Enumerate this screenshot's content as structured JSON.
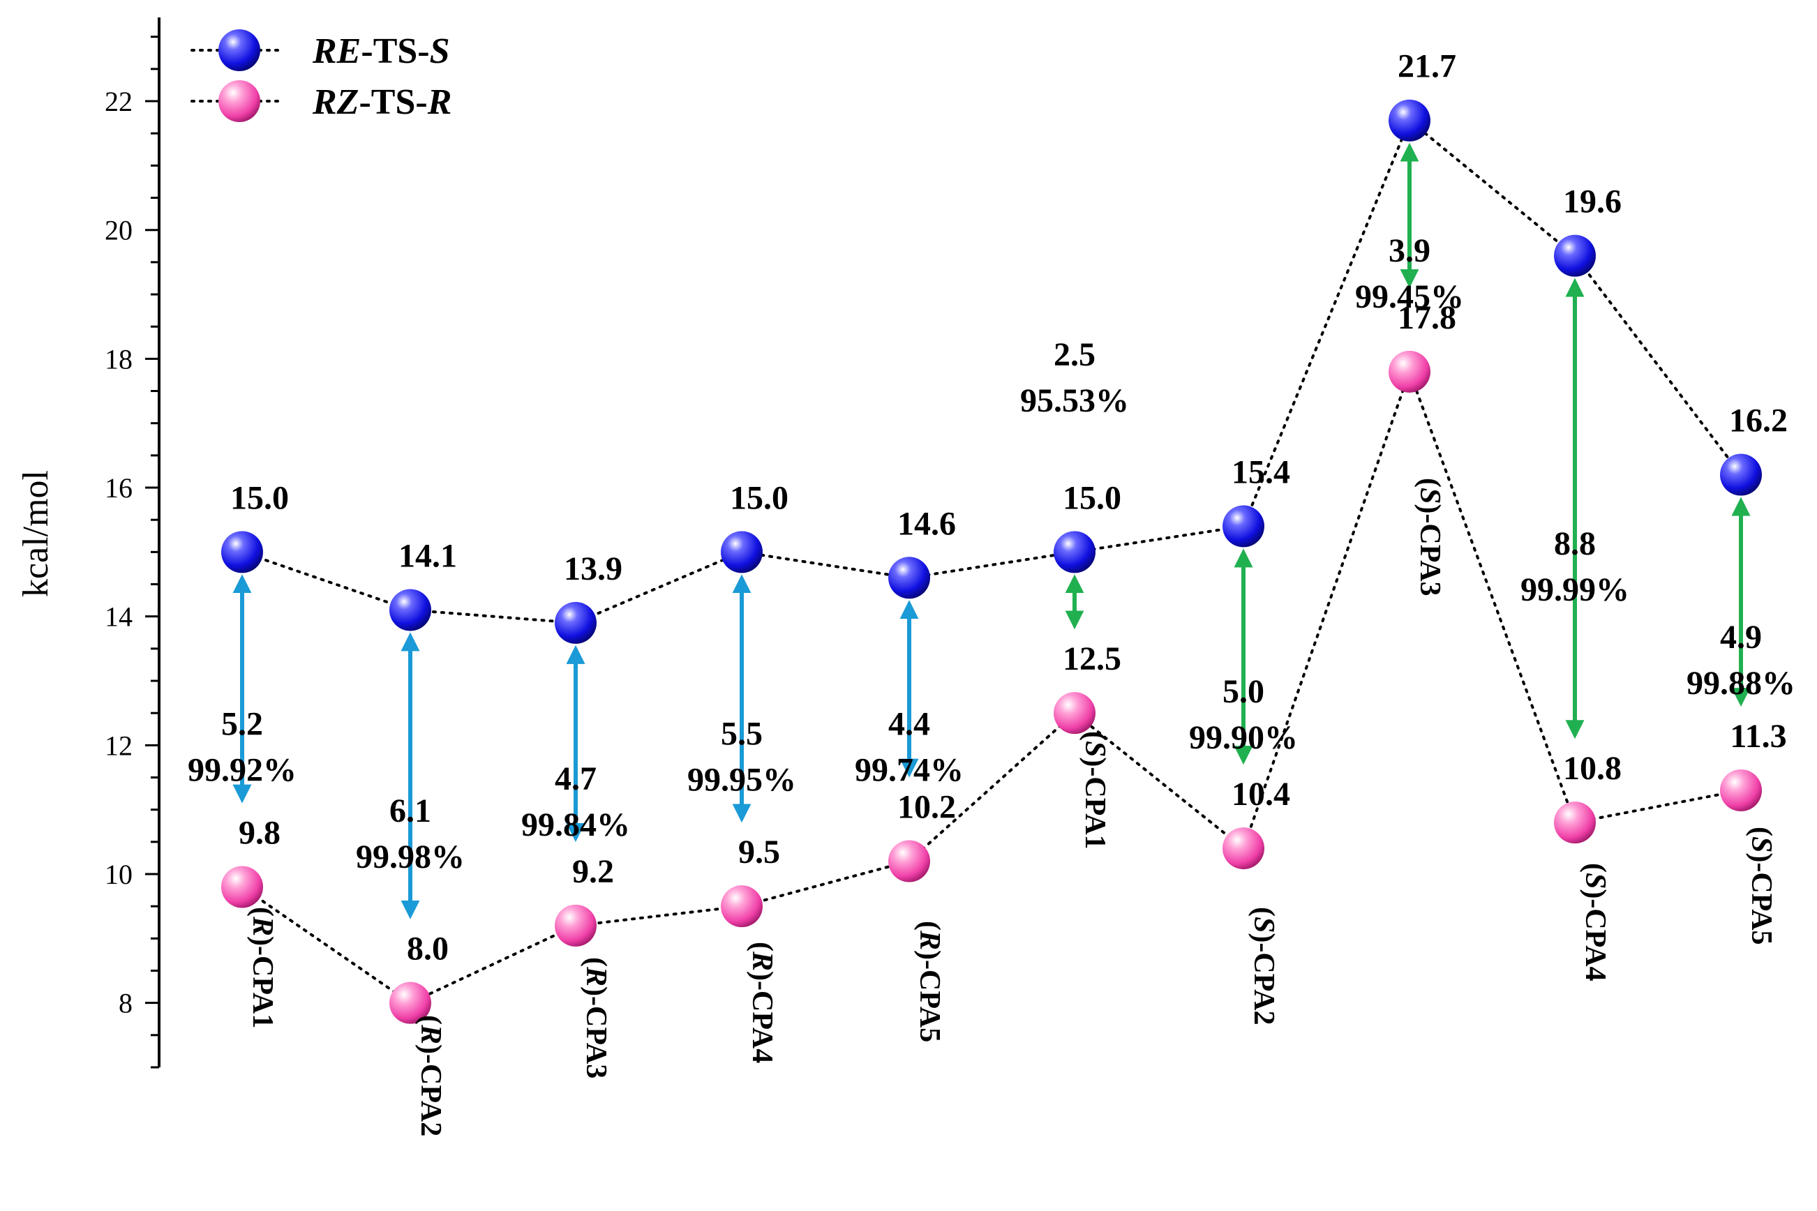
{
  "chart_data": {
    "type": "scatter",
    "ylabel": "kcal/mol",
    "ylim": [
      7.0,
      23.3
    ],
    "yticks": [
      8,
      10,
      12,
      14,
      16,
      18,
      20,
      22
    ],
    "categories": [
      "(R)-CPA1",
      "(R)-CPA2",
      "(R)-CPA3",
      "(R)-CPA4",
      "(R)-CPA5",
      "(S)-CPA1",
      "(S)-CPA2",
      "(S)-CPA3",
      "(S)-CPA4",
      "(S)-CPA5"
    ],
    "series": [
      {
        "name": "RE-TS-S",
        "name_parts": [
          {
            "text": "RE",
            "italic": true
          },
          {
            "text": "-TS-",
            "italic": false
          },
          {
            "text": "S",
            "italic": true
          }
        ],
        "color": "#1010e0",
        "values": [
          15.0,
          14.1,
          13.9,
          15.0,
          14.6,
          15.0,
          15.4,
          21.7,
          19.6,
          16.2
        ],
        "labels": [
          "15.0",
          "14.1",
          "13.9",
          "15.0",
          "14.6",
          "15.0",
          "15.4",
          "21.7",
          "19.6",
          "16.2"
        ]
      },
      {
        "name": "RZ-TS-R",
        "name_parts": [
          {
            "text": "RZ",
            "italic": true
          },
          {
            "text": "-TS-",
            "italic": false
          },
          {
            "text": "R",
            "italic": true
          }
        ],
        "color": "#f040a8",
        "values": [
          9.8,
          8.0,
          9.2,
          9.5,
          10.2,
          12.5,
          10.4,
          17.8,
          10.8,
          11.3
        ],
        "labels": [
          "9.8",
          "8.0",
          "9.2",
          "9.5",
          "10.2",
          "12.5",
          "10.4",
          "17.8",
          "10.8",
          "11.3"
        ]
      }
    ],
    "annotations": [
      {
        "delta": "5.2",
        "percent": "99.92%",
        "arrow_color": "#1a9ad6"
      },
      {
        "delta": "6.1",
        "percent": "99.98%",
        "arrow_color": "#1a9ad6"
      },
      {
        "delta": "4.7",
        "percent": "99.84%",
        "arrow_color": "#1a9ad6"
      },
      {
        "delta": "5.5",
        "percent": "99.95%",
        "arrow_color": "#1a9ad6"
      },
      {
        "delta": "4.4",
        "percent": "99.74%",
        "arrow_color": "#1a9ad6"
      },
      {
        "delta": "2.5",
        "percent": "95.53%",
        "arrow_color": "#20b050"
      },
      {
        "delta": "5.0",
        "percent": "99.90%",
        "arrow_color": "#20b050"
      },
      {
        "delta": "3.9",
        "percent": "99.45%",
        "arrow_color": "#20b050"
      },
      {
        "delta": "8.8",
        "percent": "99.99%",
        "arrow_color": "#20b050"
      },
      {
        "delta": "4.9",
        "percent": "99.88%",
        "arrow_color": "#20b050"
      }
    ],
    "legend_position": "top-left",
    "grid": false
  }
}
